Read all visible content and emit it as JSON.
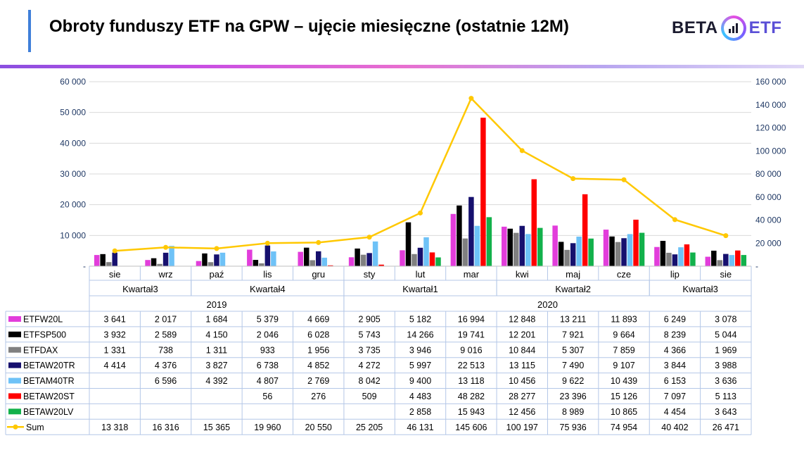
{
  "title": "Obroty funduszy ETF na GPW – ujęcie miesięczne (ostatnie 12M)",
  "logo": {
    "left": "BETA",
    "right": "ETF"
  },
  "chart_data": {
    "type": "bar",
    "title": "",
    "months": [
      "sie",
      "wrz",
      "paź",
      "lis",
      "gru",
      "sty",
      "lut",
      "mar",
      "kwi",
      "maj",
      "cze",
      "lip",
      "sie"
    ],
    "quarters": [
      {
        "label": "Kwartał3",
        "start": 0,
        "end": 1
      },
      {
        "label": "Kwartał4",
        "start": 2,
        "end": 4
      },
      {
        "label": "Kwartał1",
        "start": 5,
        "end": 7
      },
      {
        "label": "Kwartał2",
        "start": 8,
        "end": 10
      },
      {
        "label": "Kwartał3",
        "start": 11,
        "end": 12
      }
    ],
    "years": [
      {
        "label": "2019",
        "start": 0,
        "end": 4
      },
      {
        "label": "2020",
        "start": 5,
        "end": 12
      }
    ],
    "y_left": {
      "min": 0,
      "max": 60000,
      "ticks": [
        "-",
        "10 000",
        "20 000",
        "30 000",
        "40 000",
        "50 000",
        "60 000"
      ]
    },
    "y_right": {
      "min": 0,
      "max": 160000,
      "ticks": [
        "-",
        "20 000",
        "40 000",
        "60 000",
        "80 000",
        "100 000",
        "120 000",
        "140 000",
        "160 000"
      ]
    },
    "series": [
      {
        "name": "ETFW20L",
        "color": "#e23ddb",
        "values": [
          3641,
          2017,
          1684,
          5379,
          4669,
          2905,
          5182,
          16994,
          12848,
          13211,
          11893,
          6249,
          3078
        ],
        "labels": [
          "3 641",
          "2 017",
          "1 684",
          "5 379",
          "4 669",
          "2 905",
          "5 182",
          "16 994",
          "12 848",
          "13 211",
          "11 893",
          "6 249",
          "3 078"
        ]
      },
      {
        "name": "ETFSP500",
        "color": "#000000",
        "values": [
          3932,
          2589,
          4150,
          2046,
          6028,
          5743,
          14266,
          19741,
          12201,
          7921,
          9664,
          8239,
          5044
        ],
        "labels": [
          "3 932",
          "2 589",
          "4 150",
          "2 046",
          "6 028",
          "5 743",
          "14 266",
          "19 741",
          "12 201",
          "7 921",
          "9 664",
          "8 239",
          "5 044"
        ]
      },
      {
        "name": "ETFDAX",
        "color": "#808080",
        "values": [
          1331,
          738,
          1311,
          933,
          1956,
          3735,
          3946,
          9016,
          10844,
          5307,
          7859,
          4366,
          1969
        ],
        "labels": [
          "1 331",
          "738",
          "1 311",
          "933",
          "1 956",
          "3 735",
          "3 946",
          "9 016",
          "10 844",
          "5 307",
          "7 859",
          "4 366",
          "1 969"
        ]
      },
      {
        "name": "BETAW20TR",
        "color": "#16106e",
        "values": [
          4414,
          4376,
          3827,
          6738,
          4852,
          4272,
          5997,
          22513,
          13115,
          7490,
          9107,
          3844,
          3988
        ],
        "labels": [
          "4 414",
          "4 376",
          "3 827",
          "6 738",
          "4 852",
          "4 272",
          "5 997",
          "22 513",
          "13 115",
          "7 490",
          "9 107",
          "3 844",
          "3 988"
        ]
      },
      {
        "name": "BETAM40TR",
        "color": "#6ec2f7",
        "values": [
          null,
          6596,
          4392,
          4807,
          2769,
          8042,
          9400,
          13118,
          10456,
          9622,
          10439,
          6153,
          3636
        ],
        "labels": [
          "",
          "6 596",
          "4 392",
          "4 807",
          "2 769",
          "8 042",
          "9 400",
          "13 118",
          "10 456",
          "9 622",
          "10 439",
          "6 153",
          "3 636"
        ]
      },
      {
        "name": "BETAW20ST",
        "color": "#ff0000",
        "values": [
          null,
          null,
          null,
          56,
          276,
          509,
          4483,
          48282,
          28277,
          23396,
          15126,
          7097,
          5113
        ],
        "labels": [
          "",
          "",
          "",
          "56",
          "276",
          "509",
          "4 483",
          "48 282",
          "28 277",
          "23 396",
          "15 126",
          "7 097",
          "5 113"
        ]
      },
      {
        "name": "BETAW20LV",
        "color": "#12b14b",
        "values": [
          null,
          null,
          null,
          null,
          null,
          null,
          2858,
          15943,
          12456,
          8989,
          10865,
          4454,
          3643
        ],
        "labels": [
          "",
          "",
          "",
          "",
          "",
          "",
          "2 858",
          "15 943",
          "12 456",
          "8 989",
          "10 865",
          "4 454",
          "3 643"
        ]
      }
    ],
    "line": {
      "name": "Sum",
      "color": "#ffc800",
      "axis": "right",
      "values": [
        13318,
        16316,
        15365,
        19960,
        20550,
        25205,
        46131,
        145606,
        100197,
        75936,
        74954,
        40402,
        26471
      ],
      "labels": [
        "13 318",
        "16 316",
        "15 365",
        "19 960",
        "20 550",
        "25 205",
        "46 131",
        "145 606",
        "100 197",
        "75 936",
        "74 954",
        "40 402",
        "26 471"
      ]
    },
    "grid": true,
    "legend": "table"
  }
}
